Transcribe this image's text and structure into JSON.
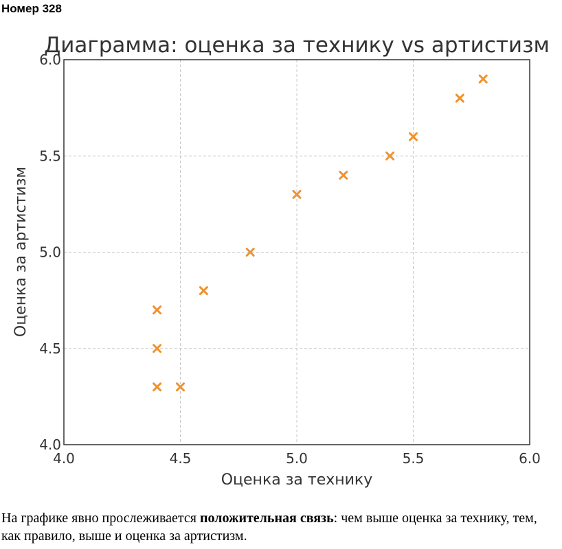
{
  "header": {
    "title": "Номер 328"
  },
  "chart_data": {
    "type": "scatter",
    "title": "Диаграмма: оценка за технику vs артистизм",
    "xlabel": "Оценка за технику",
    "ylabel": "Оценка за артистизм",
    "xlim": [
      4.0,
      6.0
    ],
    "ylim": [
      4.0,
      6.0
    ],
    "xticks": [
      "4.0",
      "4.5",
      "5.0",
      "5.5",
      "6.0"
    ],
    "yticks": [
      "4.0",
      "4.5",
      "5.0",
      "5.5",
      "6.0"
    ],
    "grid": true,
    "marker": "x",
    "color": "#F0922F",
    "points": [
      {
        "x": 4.4,
        "y": 4.3
      },
      {
        "x": 4.4,
        "y": 4.5
      },
      {
        "x": 4.4,
        "y": 4.7
      },
      {
        "x": 4.5,
        "y": 4.3
      },
      {
        "x": 4.6,
        "y": 4.8
      },
      {
        "x": 4.8,
        "y": 5.0
      },
      {
        "x": 5.0,
        "y": 5.3
      },
      {
        "x": 5.2,
        "y": 5.4
      },
      {
        "x": 5.4,
        "y": 5.5
      },
      {
        "x": 5.5,
        "y": 5.6
      },
      {
        "x": 5.7,
        "y": 5.8
      },
      {
        "x": 5.8,
        "y": 5.9
      }
    ]
  },
  "text": {
    "part1": "На графике явно прослеживается ",
    "bold": "положительная связь",
    "part2": ": чем выше оценка за технику, тем, как правило, выше и оценка за артистизм."
  }
}
